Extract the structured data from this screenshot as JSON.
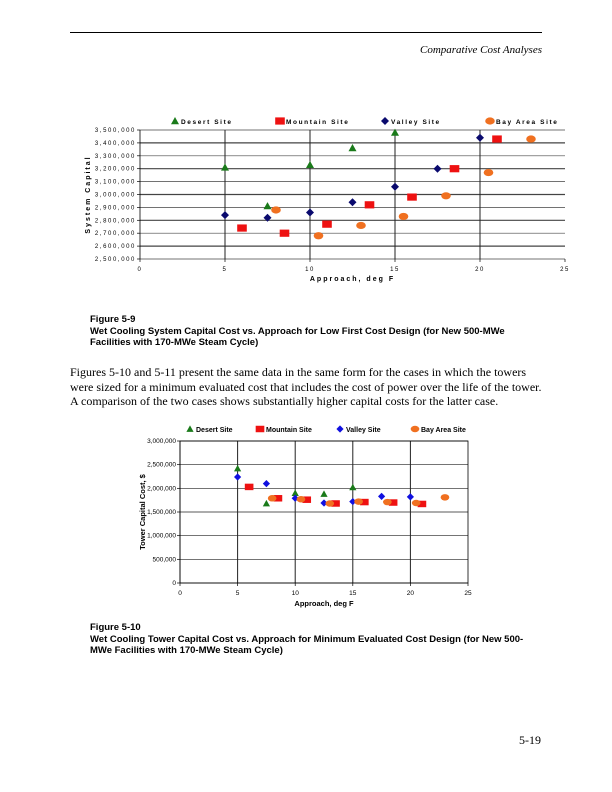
{
  "header": {
    "running_title": "Comparative Cost Analyses"
  },
  "figure_5_9": {
    "label": "Figure 5-9",
    "caption": "Wet Cooling System Capital Cost vs. Approach for Low First Cost Design (for New 500-MWe Facilities with 170-MWe Steam Cycle)"
  },
  "paragraph": "Figures 5-10 and 5-11 present the same data in the same form for the cases in which the towers were sized for a minimum evaluated cost that includes the cost of power over the life of the tower. A comparison of the two cases shows substantially higher capital costs for the latter case.",
  "figure_5_10": {
    "label": "Figure 5-10",
    "caption": "Wet Cooling Tower Capital Cost vs. Approach for Minimum Evaluated Cost Design (for New 500-MWe Facilities with 170-MWe Steam Cycle)"
  },
  "page_number": "5-19",
  "chart_data": [
    {
      "type": "scatter",
      "xlabel": "Approach, deg F",
      "ylabel": "System Capital",
      "xlim": [
        0,
        25
      ],
      "ylim": [
        2500000,
        3500000
      ],
      "xticks": [
        "0",
        "5",
        "10",
        "15",
        "20",
        "25"
      ],
      "yticks": [
        "2,500,000",
        "2,600,000",
        "2,700,000",
        "2,800,000",
        "2,900,000",
        "3,000,000",
        "3,100,000",
        "3,200,000",
        "3,300,000",
        "3,400,000",
        "3,500,000"
      ],
      "grid": true,
      "legend_position": "top",
      "series": [
        {
          "name": "Desert Site",
          "marker": "triangle",
          "color": "#1a7a1a",
          "x": [
            5,
            7.5,
            10,
            12.5,
            15
          ],
          "y": [
            3210000,
            2910000,
            3230000,
            3360000,
            3480000
          ]
        },
        {
          "name": "Mountain Site",
          "marker": "square",
          "color": "#ee1111",
          "x": [
            6,
            8.5,
            11,
            13.5,
            16,
            18.5,
            21
          ],
          "y": [
            2740000,
            2700000,
            2770000,
            2920000,
            2980000,
            3200000,
            3430000
          ]
        },
        {
          "name": "Valley Site",
          "marker": "diamond",
          "color": "#0a0a6e",
          "x": [
            5,
            7.5,
            10,
            12.5,
            15,
            17.5,
            20
          ],
          "y": [
            2840000,
            2820000,
            2860000,
            2940000,
            3060000,
            3200000,
            3440000
          ]
        },
        {
          "name": "Bay Area Site",
          "marker": "circle",
          "color": "#f07020",
          "x": [
            8,
            10.5,
            13,
            15.5,
            18,
            20.5,
            23
          ],
          "y": [
            2880000,
            2680000,
            2760000,
            2830000,
            2990000,
            3170000,
            3430000
          ]
        }
      ]
    },
    {
      "type": "scatter",
      "xlabel": "Approach, deg F",
      "ylabel": "Tower Capital Cost, $",
      "xlim": [
        0,
        25
      ],
      "ylim": [
        0,
        3000000
      ],
      "xticks": [
        "0",
        "5",
        "10",
        "15",
        "20",
        "25"
      ],
      "yticks": [
        "0",
        "500,000",
        "1,000,000",
        "1,500,000",
        "2,000,000",
        "2,500,000",
        "3,000,000"
      ],
      "grid": true,
      "legend_position": "top",
      "series": [
        {
          "name": "Desert Site",
          "marker": "triangle",
          "color": "#1a7a1a",
          "x": [
            5,
            7.5,
            10,
            12.5,
            15
          ],
          "y": [
            2420000,
            1680000,
            1900000,
            1880000,
            2020000
          ]
        },
        {
          "name": "Mountain Site",
          "marker": "square",
          "color": "#ee1111",
          "x": [
            6,
            8.5,
            11,
            13.5,
            16,
            18.5,
            21
          ],
          "y": [
            2030000,
            1790000,
            1760000,
            1680000,
            1710000,
            1700000,
            1670000
          ]
        },
        {
          "name": "Valley Site",
          "marker": "diamond",
          "color": "#1010e0",
          "x": [
            5,
            7.5,
            10,
            12.5,
            15,
            17.5,
            20
          ],
          "y": [
            2240000,
            2100000,
            1790000,
            1690000,
            1720000,
            1830000,
            1820000
          ]
        },
        {
          "name": "Bay Area Site",
          "marker": "circle",
          "color": "#f07020",
          "x": [
            8,
            10.5,
            13,
            15.5,
            18,
            20.5,
            23
          ],
          "y": [
            1790000,
            1770000,
            1680000,
            1720000,
            1710000,
            1690000,
            1810000
          ]
        }
      ]
    }
  ]
}
